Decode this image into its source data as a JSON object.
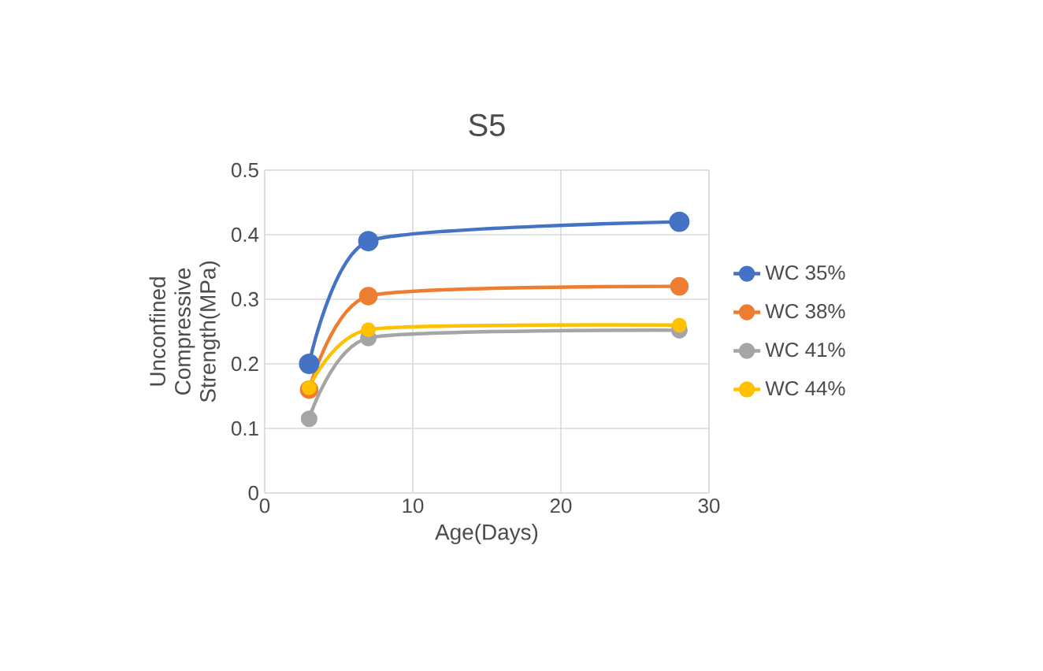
{
  "chart_data": {
    "type": "line",
    "title": "S5",
    "xlabel": "Age(Days)",
    "ylabel": "Unconfined Compressive Strength(MPa)",
    "xlim": [
      0,
      30
    ],
    "xticks": [
      0,
      10,
      20,
      30
    ],
    "ylim": [
      0,
      0.5
    ],
    "yticks": [
      0,
      0.1,
      0.2,
      0.3,
      0.4,
      0.5
    ],
    "grid": true,
    "legend": "right",
    "marker": "circle",
    "series": [
      {
        "name": "WC 35%",
        "color": "#4472c4",
        "x": [
          3,
          7,
          28
        ],
        "values": [
          0.2,
          0.39,
          0.42
        ]
      },
      {
        "name": "WC 38%",
        "color": "#ed7d31",
        "x": [
          3,
          7,
          28
        ],
        "values": [
          0.16,
          0.305,
          0.32
        ]
      },
      {
        "name": "WC 41%",
        "color": "#a5a5a5",
        "x": [
          3,
          7,
          28
        ],
        "values": [
          0.115,
          0.24,
          0.252
        ]
      },
      {
        "name": "WC 44%",
        "color": "#ffc000",
        "x": [
          3,
          7,
          28
        ],
        "values": [
          0.163,
          0.253,
          0.26
        ]
      }
    ]
  }
}
